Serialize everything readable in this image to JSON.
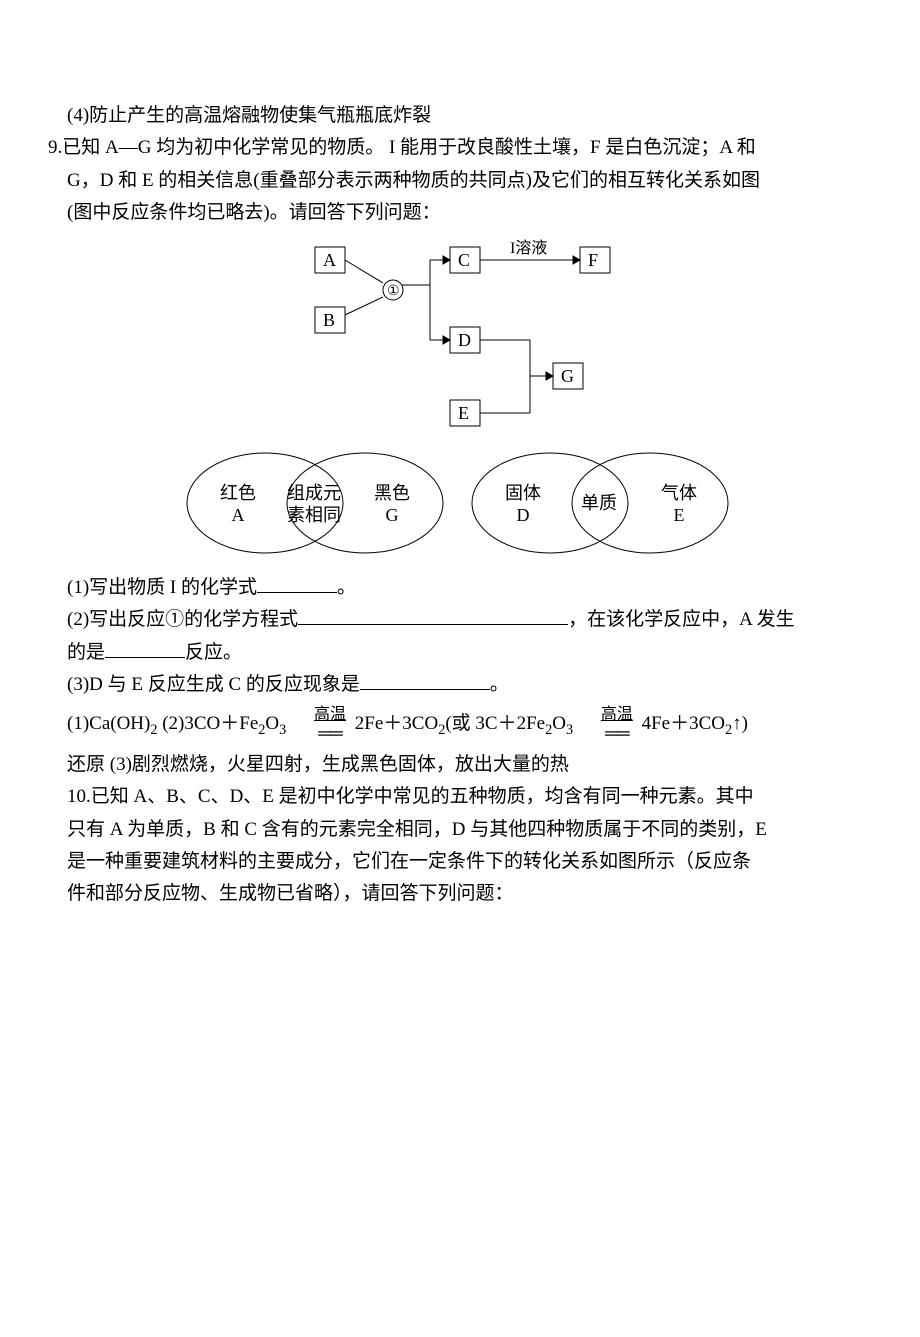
{
  "q8_4": "(4)防止产生的高温熔融物使集气瓶瓶底炸裂",
  "q9": {
    "stem_l1": "9.已知 A—G 均为初中化学常见的物质。 I 能用于改良酸性土壤，F 是白色沉淀；A 和",
    "stem_l2": "G，D 和 E 的相关信息(重叠部分表示两种物质的共同点)及它们的相互转化关系如图",
    "stem_l3": "(图中反应条件均已略去)。请回答下列问题：",
    "flow": {
      "A": "A",
      "B": "B",
      "C": "C",
      "D": "D",
      "E": "E",
      "F": "F",
      "G": "G",
      "circ": "①",
      "sol": "I溶液"
    },
    "venn": {
      "l1": "红色",
      "l2": "A",
      "m1": "组成元",
      "m2": "素相同",
      "r1": "黑色",
      "r2": "G",
      "p1": "固体",
      "p2": "D",
      "q": "单质",
      "s1": "气体",
      "s2": "E"
    },
    "p1_a": "(1)写出物质 I 的化学式",
    "p1_b": "。",
    "p2_a": "(2)写出反应①的化学方程式",
    "p2_b": "，在该化学反应中，A 发生",
    "p2_c": "的是",
    "p2_d": "反应。",
    "p3_a": "(3)D 与 E 反应生成 C 的反应现象是",
    "p3_b": "。",
    "ans1_a": "(1)Ca(OH)",
    "ans1_b": "  (2)3CO＋Fe",
    "ans1_c": "O",
    "ans1_d": "  2Fe＋3CO",
    "ans1_e": "(或 3C＋2Fe",
    "ans1_f": "O",
    "ans1_g": "  4Fe＋3CO",
    "ans1_h": "↑)",
    "ans2": "还原   (3)剧烈燃烧，火星四射，生成黑色固体，放出大量的热",
    "hi": "高温",
    "eqline": "══"
  },
  "q10": {
    "l1": "10.已知 A、B、C、D、E 是初中化学中常见的五种物质，均含有同一种元素。其中",
    "l2": "只有 A 为单质，B 和 C 含有的元素完全相同，D 与其他四种物质属于不同的类别，E",
    "l3": "是一种重要建筑材料的主要成分，它们在一定条件下的转化关系如图所示（反应条",
    "l4": "件和部分反应物、生成物已省略），请回答下列问题："
  },
  "blanks": {
    "b1": 80,
    "b2": 270,
    "b3": 80,
    "b4": 130
  }
}
